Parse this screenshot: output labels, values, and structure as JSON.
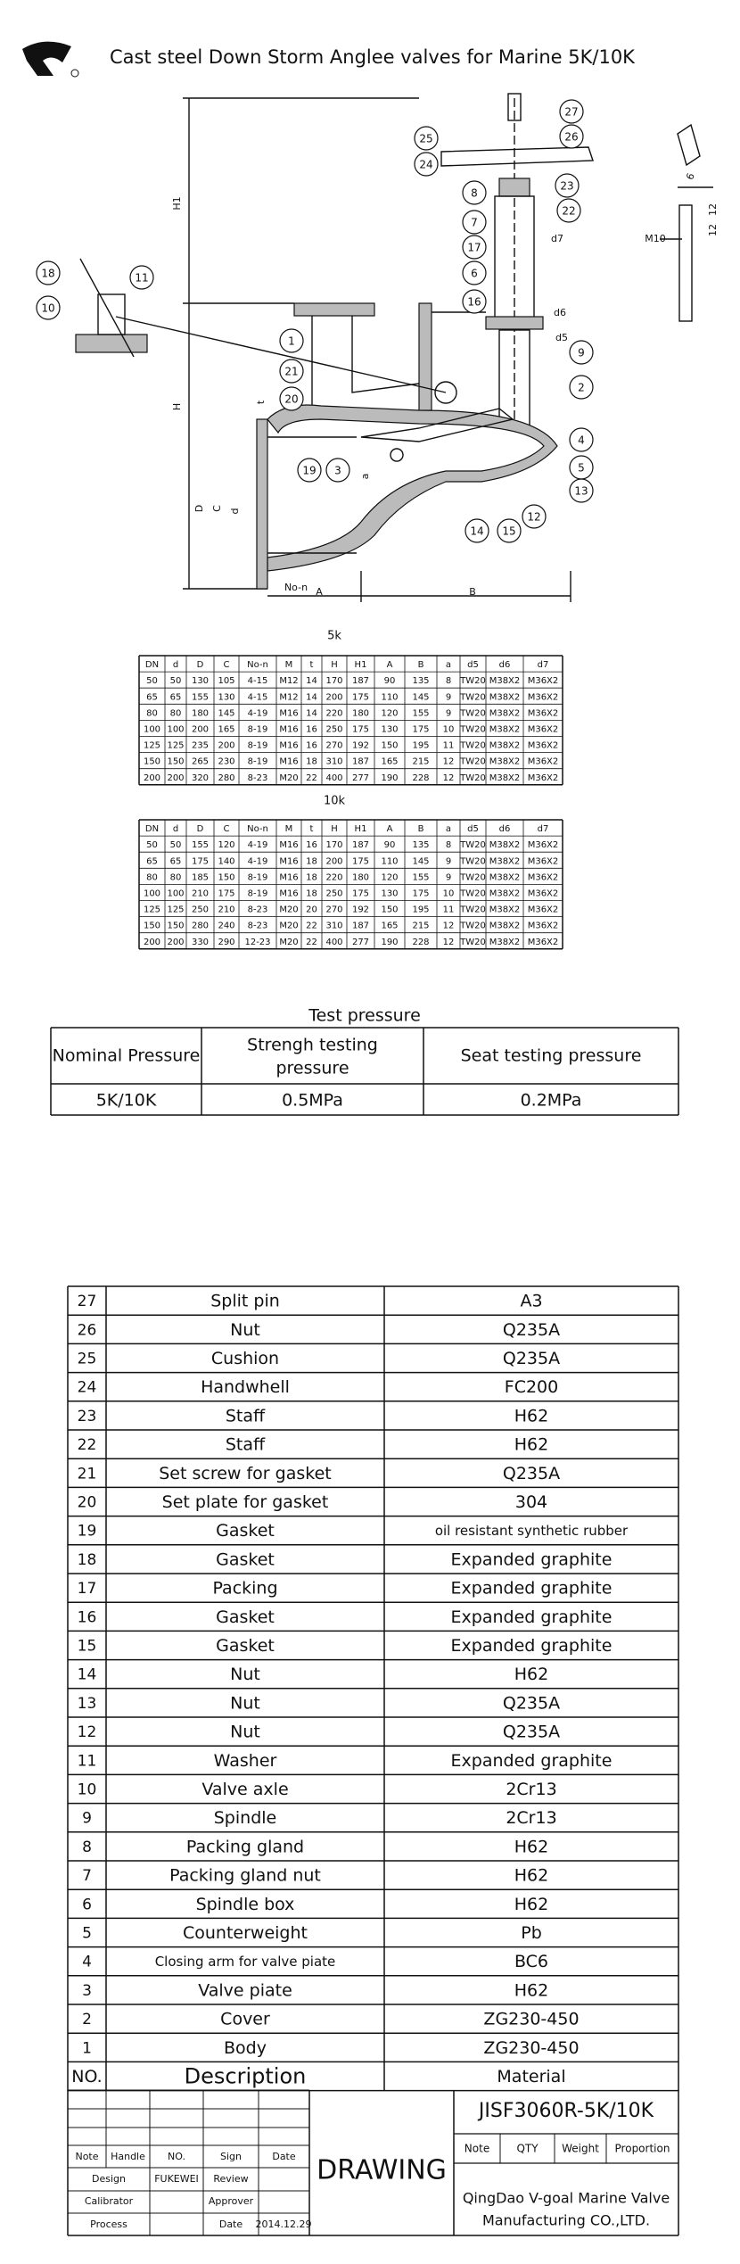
{
  "header": {
    "title": "Cast steel Down Storm Anglee valves for Marine 5K/10K"
  },
  "drawing": {
    "callouts": [
      "27",
      "26",
      "25",
      "24",
      "23",
      "22",
      "8",
      "7",
      "17",
      "6",
      "16",
      "9",
      "2",
      "4",
      "5",
      "13",
      "12",
      "15",
      "14",
      "1",
      "21",
      "20",
      "19",
      "3",
      "18",
      "11",
      "10"
    ],
    "dimensions": [
      "H1",
      "H",
      "D",
      "C",
      "d",
      "No-n",
      "A",
      "B",
      "t",
      "a",
      "d7",
      "d6",
      "d5",
      "M10",
      "12",
      "12",
      "6"
    ]
  },
  "table_5k": {
    "label": "5k",
    "columns": [
      "DN",
      "d",
      "D",
      "C",
      "No-n",
      "M",
      "t",
      "H",
      "H1",
      "A",
      "B",
      "a",
      "d5",
      "d6",
      "d7"
    ],
    "rows": [
      [
        "50",
        "50",
        "130",
        "105",
        "4-15",
        "M12",
        "14",
        "170",
        "187",
        "90",
        "135",
        "8",
        "TW20",
        "M38X2",
        "M36X2"
      ],
      [
        "65",
        "65",
        "155",
        "130",
        "4-15",
        "M12",
        "14",
        "200",
        "175",
        "110",
        "145",
        "9",
        "TW20",
        "M38X2",
        "M36X2"
      ],
      [
        "80",
        "80",
        "180",
        "145",
        "4-19",
        "M16",
        "14",
        "220",
        "180",
        "120",
        "155",
        "9",
        "TW20",
        "M38X2",
        "M36X2"
      ],
      [
        "100",
        "100",
        "200",
        "165",
        "8-19",
        "M16",
        "16",
        "250",
        "175",
        "130",
        "175",
        "10",
        "TW20",
        "M38X2",
        "M36X2"
      ],
      [
        "125",
        "125",
        "235",
        "200",
        "8-19",
        "M16",
        "16",
        "270",
        "192",
        "150",
        "195",
        "11",
        "TW20",
        "M38X2",
        "M36X2"
      ],
      [
        "150",
        "150",
        "265",
        "230",
        "8-19",
        "M16",
        "18",
        "310",
        "187",
        "165",
        "215",
        "12",
        "TW20",
        "M38X2",
        "M36X2"
      ],
      [
        "200",
        "200",
        "320",
        "280",
        "8-23",
        "M20",
        "22",
        "400",
        "277",
        "190",
        "228",
        "12",
        "TW20",
        "M38X2",
        "M36X2"
      ]
    ]
  },
  "table_10k": {
    "label": "10k",
    "columns": [
      "DN",
      "d",
      "D",
      "C",
      "No-n",
      "M",
      "t",
      "H",
      "H1",
      "A",
      "B",
      "a",
      "d5",
      "d6",
      "d7"
    ],
    "rows": [
      [
        "50",
        "50",
        "155",
        "120",
        "4-19",
        "M16",
        "16",
        "170",
        "187",
        "90",
        "135",
        "8",
        "TW20",
        "M38X2",
        "M36X2"
      ],
      [
        "65",
        "65",
        "175",
        "140",
        "4-19",
        "M16",
        "18",
        "200",
        "175",
        "110",
        "145",
        "9",
        "TW20",
        "M38X2",
        "M36X2"
      ],
      [
        "80",
        "80",
        "185",
        "150",
        "8-19",
        "M16",
        "18",
        "220",
        "180",
        "120",
        "155",
        "9",
        "TW20",
        "M38X2",
        "M36X2"
      ],
      [
        "100",
        "100",
        "210",
        "175",
        "8-19",
        "M16",
        "18",
        "250",
        "175",
        "130",
        "175",
        "10",
        "TW20",
        "M38X2",
        "M36X2"
      ],
      [
        "125",
        "125",
        "250",
        "210",
        "8-23",
        "M20",
        "20",
        "270",
        "192",
        "150",
        "195",
        "11",
        "TW20",
        "M38X2",
        "M36X2"
      ],
      [
        "150",
        "150",
        "280",
        "240",
        "8-23",
        "M20",
        "22",
        "310",
        "187",
        "165",
        "215",
        "12",
        "TW20",
        "M38X2",
        "M36X2"
      ],
      [
        "200",
        "200",
        "330",
        "290",
        "12-23",
        "M20",
        "22",
        "400",
        "277",
        "190",
        "228",
        "12",
        "TW20",
        "M38X2",
        "M36X2"
      ]
    ]
  },
  "test_pressure": {
    "title": "Test pressure",
    "columns": [
      "Nominal Pressure",
      [
        "Strengh testing",
        "pressure"
      ],
      "Seat testing pressure"
    ],
    "rows": [
      [
        "5K/10K",
        "0.5MPa",
        "0.2MPa"
      ]
    ]
  },
  "parts_list": {
    "columns": [
      "NO.",
      "Description",
      "Material"
    ],
    "rows": [
      [
        "27",
        "Split pin",
        "A3"
      ],
      [
        "26",
        "Nut",
        "Q235A"
      ],
      [
        "25",
        "Cushion",
        "Q235A"
      ],
      [
        "24",
        "Handwhell",
        "FC200"
      ],
      [
        "23",
        "Staff",
        "H62"
      ],
      [
        "22",
        "Staff",
        "H62"
      ],
      [
        "21",
        "Set screw for gasket",
        "Q235A"
      ],
      [
        "20",
        "Set plate for gasket",
        "304"
      ],
      [
        "19",
        "Gasket",
        "oil resistant synthetic rubber"
      ],
      [
        "18",
        "Gasket",
        "Expanded graphite"
      ],
      [
        "17",
        "Packing",
        "Expanded graphite"
      ],
      [
        "16",
        "Gasket",
        "Expanded graphite"
      ],
      [
        "15",
        "Gasket",
        "Expanded graphite"
      ],
      [
        "14",
        "Nut",
        "H62"
      ],
      [
        "13",
        "Nut",
        "Q235A"
      ],
      [
        "12",
        "Nut",
        "Q235A"
      ],
      [
        "11",
        "Washer",
        "Expanded graphite"
      ],
      [
        "10",
        "Valve axle",
        "2Cr13"
      ],
      [
        "9",
        "Spindle",
        "2Cr13"
      ],
      [
        "8",
        "Packing gland",
        "H62"
      ],
      [
        "7",
        "Packing gland nut",
        "H62"
      ],
      [
        "6",
        "Spindle box",
        "H62"
      ],
      [
        "5",
        "Counterweight",
        "Pb"
      ],
      [
        "4",
        "Closing arm for valve piate",
        "BC6"
      ],
      [
        "3",
        "Valve piate",
        "H62"
      ],
      [
        "2",
        "Cover",
        "ZG230-450"
      ],
      [
        "1",
        "Body",
        "ZG230-450"
      ]
    ]
  },
  "title_block": {
    "signoff": {
      "headers": [
        "Note",
        "Handle",
        "NO.",
        "Sign",
        "Date"
      ],
      "design_label": "Design",
      "designer": "FUKEWEI",
      "review_label": "Review",
      "calibrator_label": "Calibrator",
      "approver_label": "Approver",
      "process_label": "Process",
      "date_label": "Date",
      "date": "2014.12.29"
    },
    "drawing_label": "DRAWING",
    "drawing_number": "JISF3060R-5K/10K",
    "info_headers": [
      "Note",
      "QTY",
      "Weight",
      "Proportion"
    ],
    "company": [
      "QingDao V-goal Marine Valve",
      "Manufacturing CO.,LTD."
    ]
  }
}
